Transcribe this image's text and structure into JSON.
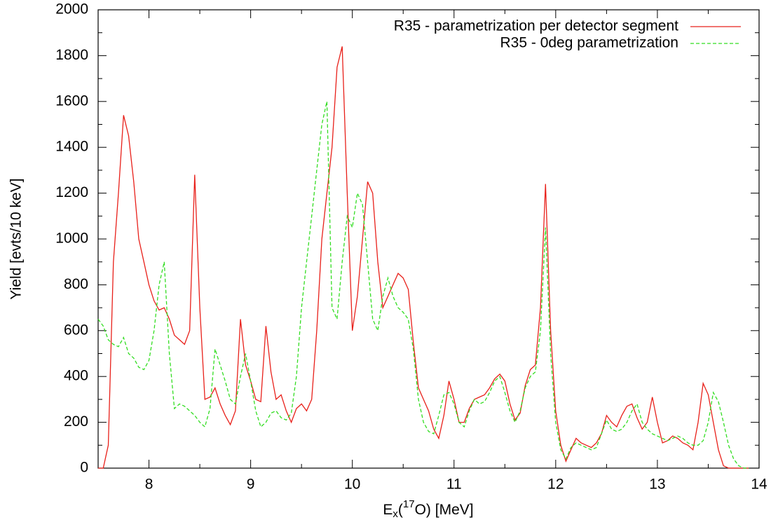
{
  "chart_data": {
    "type": "line",
    "ylabel": "Yield [evts/10 keV]",
    "xlabel": [
      "E",
      "x",
      "(",
      "17",
      "O) [MeV]"
    ],
    "x": [
      7.5,
      7.55,
      7.6,
      7.65,
      7.7,
      7.75,
      7.8,
      7.85,
      7.9,
      7.95,
      8,
      8.05,
      8.1,
      8.15,
      8.2,
      8.25,
      8.3,
      8.35,
      8.4,
      8.45,
      8.5,
      8.55,
      8.6,
      8.65,
      8.7,
      8.75,
      8.8,
      8.85,
      8.9,
      8.95,
      9,
      9.05,
      9.1,
      9.15,
      9.2,
      9.25,
      9.3,
      9.35,
      9.4,
      9.45,
      9.5,
      9.55,
      9.6,
      9.65,
      9.7,
      9.75,
      9.8,
      9.85,
      9.9,
      9.95,
      10,
      10.05,
      10.1,
      10.15,
      10.2,
      10.25,
      10.3,
      10.35,
      10.4,
      10.45,
      10.5,
      10.55,
      10.6,
      10.65,
      10.7,
      10.75,
      10.8,
      10.85,
      10.9,
      10.95,
      11,
      11.05,
      11.1,
      11.15,
      11.2,
      11.25,
      11.3,
      11.35,
      11.4,
      11.45,
      11.5,
      11.55,
      11.6,
      11.65,
      11.7,
      11.75,
      11.8,
      11.85,
      11.9,
      11.95,
      12,
      12.05,
      12.1,
      12.15,
      12.2,
      12.25,
      12.3,
      12.35,
      12.4,
      12.45,
      12.5,
      12.55,
      12.6,
      12.65,
      12.7,
      12.75,
      12.8,
      12.85,
      12.9,
      12.95,
      13,
      13.05,
      13.1,
      13.15,
      13.2,
      13.25,
      13.3,
      13.35,
      13.4,
      13.45,
      13.5,
      13.55,
      13.6,
      13.65,
      13.7,
      13.75,
      13.8,
      13.85,
      13.9
    ],
    "series": [
      {
        "name": "R35 - parametrization per detector segment",
        "color": "#e8201a",
        "dash": false,
        "values": [
          0,
          0,
          100,
          900,
          1200,
          1540,
          1450,
          1250,
          1000,
          900,
          800,
          730,
          690,
          700,
          650,
          580,
          560,
          540,
          600,
          1280,
          700,
          300,
          310,
          350,
          280,
          230,
          190,
          250,
          650,
          450,
          380,
          300,
          290,
          620,
          420,
          300,
          320,
          250,
          200,
          260,
          280,
          250,
          300,
          600,
          1000,
          1200,
          1400,
          1750,
          1840,
          1200,
          600,
          750,
          1000,
          1250,
          1200,
          900,
          700,
          750,
          800,
          850,
          830,
          780,
          550,
          350,
          300,
          250,
          170,
          130,
          230,
          380,
          300,
          200,
          200,
          260,
          300,
          310,
          320,
          350,
          390,
          410,
          380,
          280,
          210,
          240,
          360,
          430,
          450,
          700,
          1240,
          600,
          250,
          100,
          30,
          80,
          130,
          110,
          100,
          90,
          110,
          150,
          230,
          200,
          180,
          230,
          270,
          280,
          220,
          170,
          200,
          310,
          200,
          110,
          120,
          140,
          130,
          110,
          100,
          80,
          200,
          370,
          320,
          200,
          80,
          10,
          0,
          0,
          0,
          0,
          0
        ]
      },
      {
        "name": "R35 - 0deg parametrization",
        "color": "#33dd22",
        "dash": true,
        "values": [
          650,
          620,
          560,
          540,
          530,
          570,
          500,
          480,
          440,
          430,
          470,
          600,
          800,
          900,
          500,
          260,
          280,
          270,
          250,
          230,
          200,
          180,
          260,
          520,
          450,
          380,
          300,
          280,
          400,
          500,
          380,
          250,
          180,
          200,
          240,
          250,
          220,
          210,
          240,
          400,
          700,
          900,
          1100,
          1300,
          1500,
          1600,
          700,
          650,
          900,
          1100,
          1050,
          1200,
          1150,
          900,
          650,
          600,
          750,
          830,
          750,
          700,
          680,
          650,
          520,
          300,
          200,
          160,
          150,
          230,
          320,
          330,
          280,
          200,
          180,
          250,
          300,
          280,
          290,
          330,
          380,
          400,
          330,
          250,
          200,
          250,
          350,
          400,
          420,
          600,
          1050,
          500,
          200,
          80,
          40,
          90,
          110,
          100,
          90,
          80,
          90,
          150,
          210,
          170,
          160,
          170,
          200,
          250,
          280,
          200,
          170,
          150,
          140,
          130,
          120,
          130,
          140,
          130,
          110,
          100,
          100,
          120,
          200,
          330,
          290,
          200,
          100,
          40,
          10,
          0,
          0
        ]
      }
    ],
    "xlim": [
      7.5,
      14
    ],
    "xticks": [
      8,
      9,
      10,
      11,
      12,
      13,
      14
    ],
    "ylim": [
      0,
      2000
    ],
    "yticks": [
      0,
      200,
      400,
      600,
      800,
      1000,
      1200,
      1400,
      1600,
      1800,
      2000
    ],
    "legend": "top-right"
  }
}
